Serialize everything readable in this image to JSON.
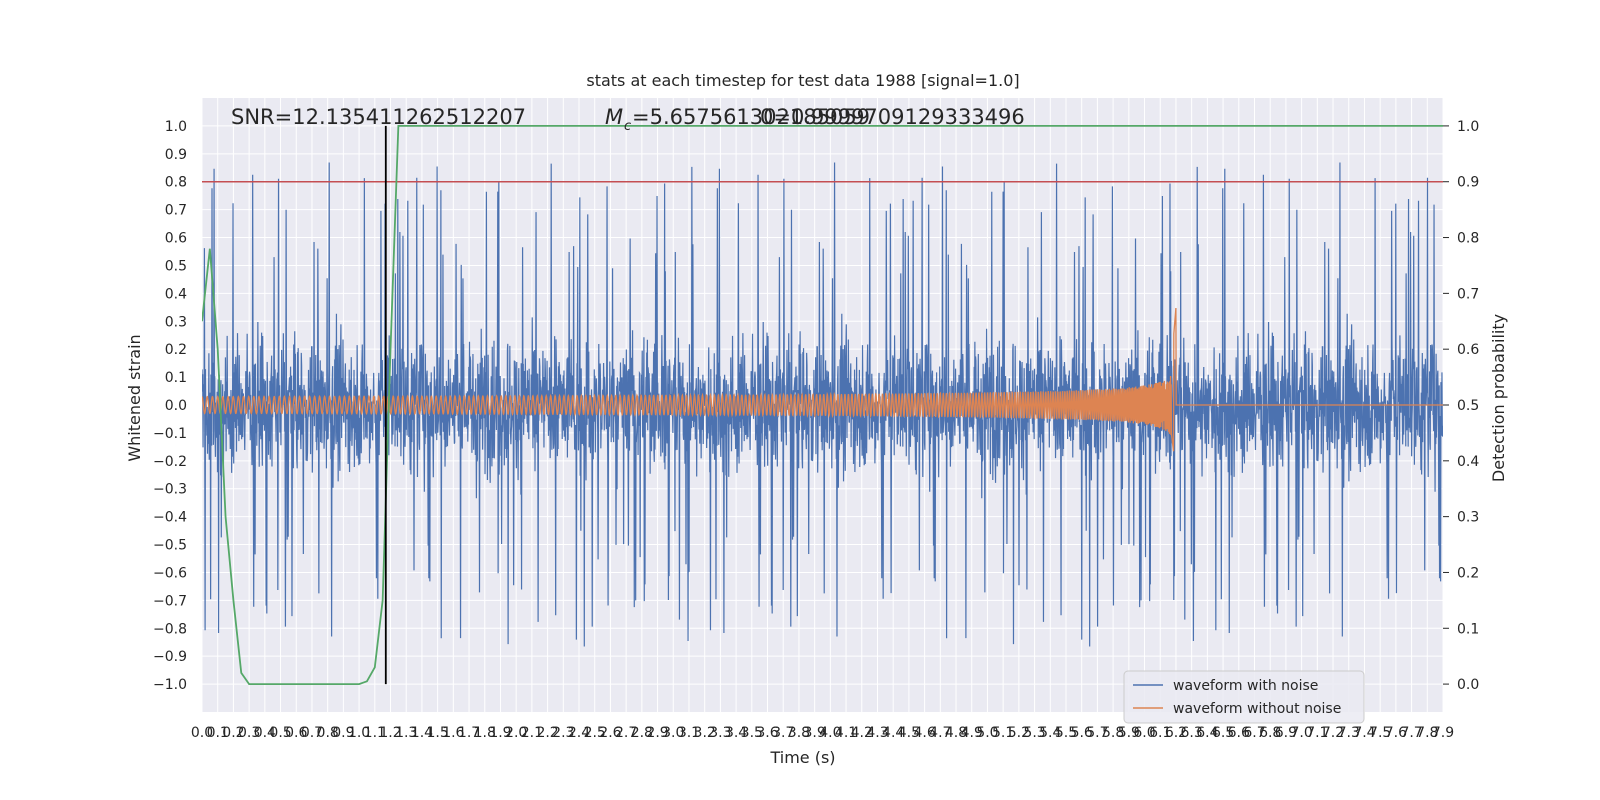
{
  "chart_data": {
    "type": "line",
    "title": "stats at each timestep for test data 1988 [signal=1.0]",
    "xlabel": "Time (s)",
    "ylabel": "Whitened strain",
    "y2label": "Detection probability",
    "xlim": [
      0.0,
      7.9
    ],
    "ylim": [
      -1.1,
      1.1
    ],
    "y2lim": [
      -0.05,
      1.05
    ],
    "x_ticks": [
      "0.0",
      "0.1",
      "0.2",
      "0.3",
      "0.4",
      "0.5",
      "0.6",
      "0.7",
      "0.8",
      "0.9",
      "1.0",
      "1.1",
      "1.2",
      "1.3",
      "1.4",
      "1.5",
      "1.6",
      "1.7",
      "1.8",
      "1.9",
      "2.0",
      "2.1",
      "2.2",
      "2.3",
      "2.4",
      "2.5",
      "2.6",
      "2.7",
      "2.8",
      "2.9",
      "3.0",
      "3.1",
      "3.2",
      "3.3",
      "3.4",
      "3.5",
      "3.6",
      "3.7",
      "3.8",
      "3.9",
      "4.0",
      "4.1",
      "4.2",
      "4.3",
      "4.4",
      "4.5",
      "4.6",
      "4.7",
      "4.8",
      "4.9",
      "5.0",
      "5.1",
      "5.2",
      "5.3",
      "5.4",
      "5.5",
      "5.6",
      "5.7",
      "5.8",
      "5.9",
      "6.0",
      "6.1",
      "6.2",
      "6.3",
      "6.4",
      "6.5",
      "6.6",
      "6.7",
      "6.8",
      "6.9",
      "7.0",
      "7.1",
      "7.2",
      "7.3",
      "7.4",
      "7.5",
      "7.6",
      "7.7",
      "7.8",
      "7.9"
    ],
    "y_ticks": [
      "1.0",
      "0.9",
      "0.8",
      "0.7",
      "0.6",
      "0.5",
      "0.4",
      "0.3",
      "0.2",
      "0.1",
      "0.0",
      "−0.1",
      "−0.2",
      "−0.3",
      "−0.4",
      "−0.5",
      "−0.6",
      "−0.7",
      "−0.8",
      "−0.9",
      "−1.0"
    ],
    "y2_ticks": [
      "1.0",
      "0.9",
      "0.8",
      "0.7",
      "0.6",
      "0.5",
      "0.4",
      "0.3",
      "0.2",
      "0.1",
      "0.0"
    ],
    "annotations": {
      "snr": "SNR=12.135411262512207",
      "mc": "=5.657561302185059",
      "mc_symbol": "M",
      "mc_sub": "c",
      "overlap": "0=0.9999709129333496"
    },
    "series": [
      {
        "name": "waveform with noise",
        "color": "#4c72b0",
        "noise_envelope_typ": 0.5,
        "noise_peak_max": 1.0,
        "noise_peak_min": -1.0
      },
      {
        "name": "waveform without noise",
        "color": "#dd8452",
        "chirp_start_amp": 0.03,
        "chirp_end_time": 6.2,
        "chirp_peak_high": 0.35,
        "chirp_peak_low": -0.24
      },
      {
        "name": "detection probability",
        "color": "#55a868",
        "points": [
          [
            0.0,
            0.65
          ],
          [
            0.05,
            0.78
          ],
          [
            0.1,
            0.6
          ],
          [
            0.15,
            0.3
          ],
          [
            0.2,
            0.15
          ],
          [
            0.25,
            0.02
          ],
          [
            0.3,
            0.0
          ],
          [
            0.5,
            0.0
          ],
          [
            0.8,
            0.0
          ],
          [
            1.0,
            0.0
          ],
          [
            1.05,
            0.005
          ],
          [
            1.1,
            0.03
          ],
          [
            1.15,
            0.15
          ],
          [
            1.2,
            0.6
          ],
          [
            1.25,
            1.0
          ],
          [
            7.9,
            1.0
          ]
        ]
      }
    ],
    "threshold_line": {
      "y": 0.9,
      "axis": "right",
      "color": "#c44e52"
    },
    "vertical_marker": {
      "x": 1.17,
      "color": "#000000"
    },
    "legend": {
      "placement": "lower-right"
    },
    "grid": true
  }
}
